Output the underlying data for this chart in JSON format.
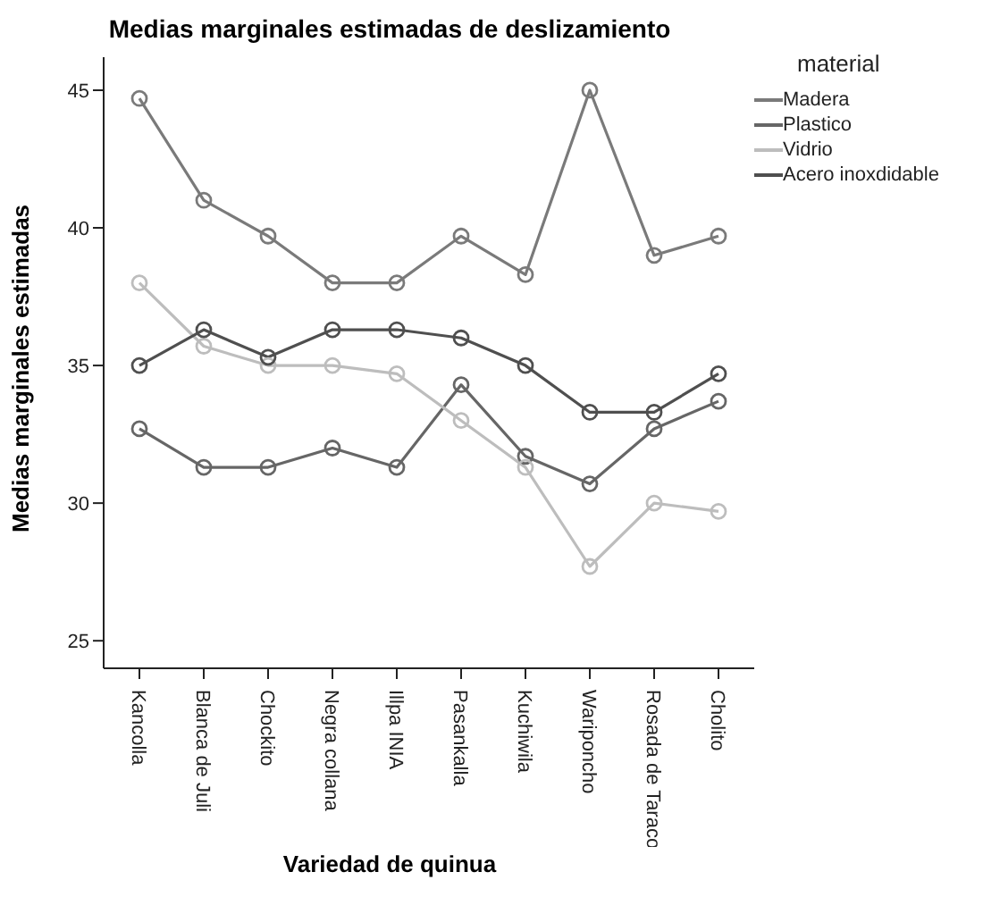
{
  "chart_data": {
    "type": "line",
    "title": "Medias marginales estimadas de deslizamiento",
    "xlabel": "Variedad de quinua",
    "ylabel": "Medias marginales estimadas",
    "legend_title": "material",
    "categories": [
      "Kancolla",
      "Blanca de Juli",
      "Chockito",
      "Negra collana",
      "Illpa INIA",
      "Pasankalla",
      "Kuchiwila",
      "Wariponcho",
      "Rosada de Taraco",
      "Cholito"
    ],
    "series": [
      {
        "name": "Madera",
        "color": "#7a7a7a",
        "values": [
          44.7,
          41,
          39.7,
          38,
          38,
          39.7,
          38.3,
          45,
          39,
          39.7
        ]
      },
      {
        "name": "Plastico",
        "color": "#666666",
        "values": [
          32.7,
          31.3,
          31.3,
          32,
          31.3,
          34.3,
          31.7,
          30.7,
          32.7,
          33.7
        ]
      },
      {
        "name": "Vidrio",
        "color": "#bdbdbd",
        "values": [
          38,
          35.7,
          35,
          35,
          34.7,
          33,
          31.3,
          27.7,
          30,
          29.7
        ]
      },
      {
        "name": "Acero inoxdidable",
        "color": "#4f4f4f",
        "values": [
          35,
          36.3,
          35.3,
          36.3,
          36.3,
          36,
          35,
          33.3,
          33.3,
          34.7
        ]
      }
    ],
    "ylim": [
      24,
      46.2
    ],
    "yticks": [
      25,
      30,
      35,
      40,
      45
    ],
    "grid": false,
    "legend": "top right",
    "marker": "circle",
    "line_style": "solid"
  }
}
